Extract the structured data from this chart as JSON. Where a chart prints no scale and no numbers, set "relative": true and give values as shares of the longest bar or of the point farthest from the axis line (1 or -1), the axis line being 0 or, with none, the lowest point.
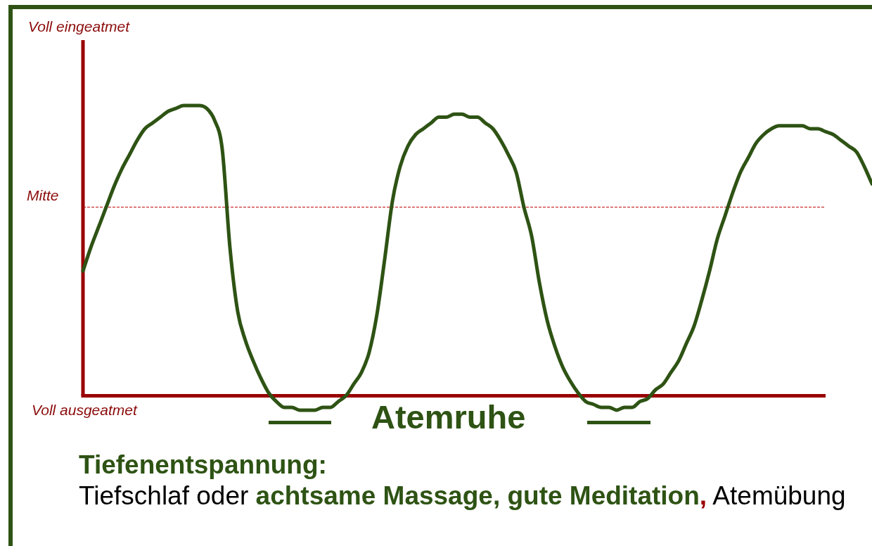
{
  "chart_data": {
    "type": "line",
    "relative": true,
    "tick_labels": false,
    "categories": [
      null,
      null,
      null,
      null,
      null,
      null,
      null,
      null,
      null,
      null,
      null,
      null,
      null,
      null,
      null,
      null,
      null,
      null,
      null,
      null,
      null,
      null,
      null,
      null,
      null,
      null,
      null,
      null,
      null,
      null,
      null,
      null,
      null,
      null,
      null,
      null,
      null,
      null,
      null,
      null,
      null,
      null,
      null,
      null,
      null,
      null,
      null,
      null,
      null,
      null,
      null,
      null,
      null,
      null,
      null,
      null,
      null,
      null,
      null,
      null,
      null,
      null,
      null,
      null,
      null,
      null,
      null,
      null,
      null,
      null,
      null,
      null,
      null,
      null,
      null,
      null,
      null,
      null,
      null,
      null,
      null,
      null,
      null,
      null,
      null,
      null,
      null,
      null,
      null,
      null,
      null,
      null,
      null,
      null,
      null,
      null,
      null,
      null,
      null,
      null,
      null,
      null,
      null
    ],
    "values": [
      0.43,
      0.51,
      0.58,
      0.65,
      0.72,
      0.78,
      0.83,
      0.88,
      0.92,
      0.94,
      0.96,
      0.98,
      0.99,
      1,
      1,
      1,
      0.99,
      0.95,
      0.85,
      0.51,
      0.29,
      0.19,
      0.12,
      0.06,
      0.01,
      -0.02,
      -0.04,
      -0.04,
      -0.05,
      -0.05,
      -0.05,
      -0.04,
      -0.04,
      -0.02,
      0,
      0.04,
      0.08,
      0.15,
      0.28,
      0.47,
      0.67,
      0.79,
      0.86,
      0.9,
      0.92,
      0.94,
      0.96,
      0.96,
      0.97,
      0.97,
      0.96,
      0.96,
      0.94,
      0.92,
      0.88,
      0.83,
      0.77,
      0.65,
      0.55,
      0.39,
      0.26,
      0.17,
      0.1,
      0.05,
      0.01,
      -0.02,
      -0.03,
      -0.04,
      -0.04,
      -0.05,
      -0.04,
      -0.04,
      -0.02,
      -0.01,
      0.02,
      0.04,
      0.08,
      0.12,
      0.18,
      0.24,
      0.33,
      0.43,
      0.54,
      0.62,
      0.7,
      0.77,
      0.82,
      0.87,
      0.9,
      0.92,
      0.93,
      0.93,
      0.93,
      0.93,
      0.92,
      0.92,
      0.91,
      0.9,
      0.88,
      0.86,
      0.84,
      0.79,
      0.73
    ],
    "color": "#2e5314",
    "ref_lines": [
      {
        "axis": "y",
        "value": 0,
        "label": "Voll ausgeatmet",
        "color": "#990000",
        "line_style": "solid"
      },
      {
        "axis": "y",
        "value": 0.65,
        "label": "Mitte",
        "color": "#c00000",
        "line_style": "dashed"
      }
    ],
    "annotations": [
      "Voll eingeatmet",
      "Atemruhe",
      "Tiefenentspannung:",
      "Tiefschlaf oder",
      "achtsame Massage, gute Meditation",
      ",",
      "Atemübung"
    ]
  }
}
